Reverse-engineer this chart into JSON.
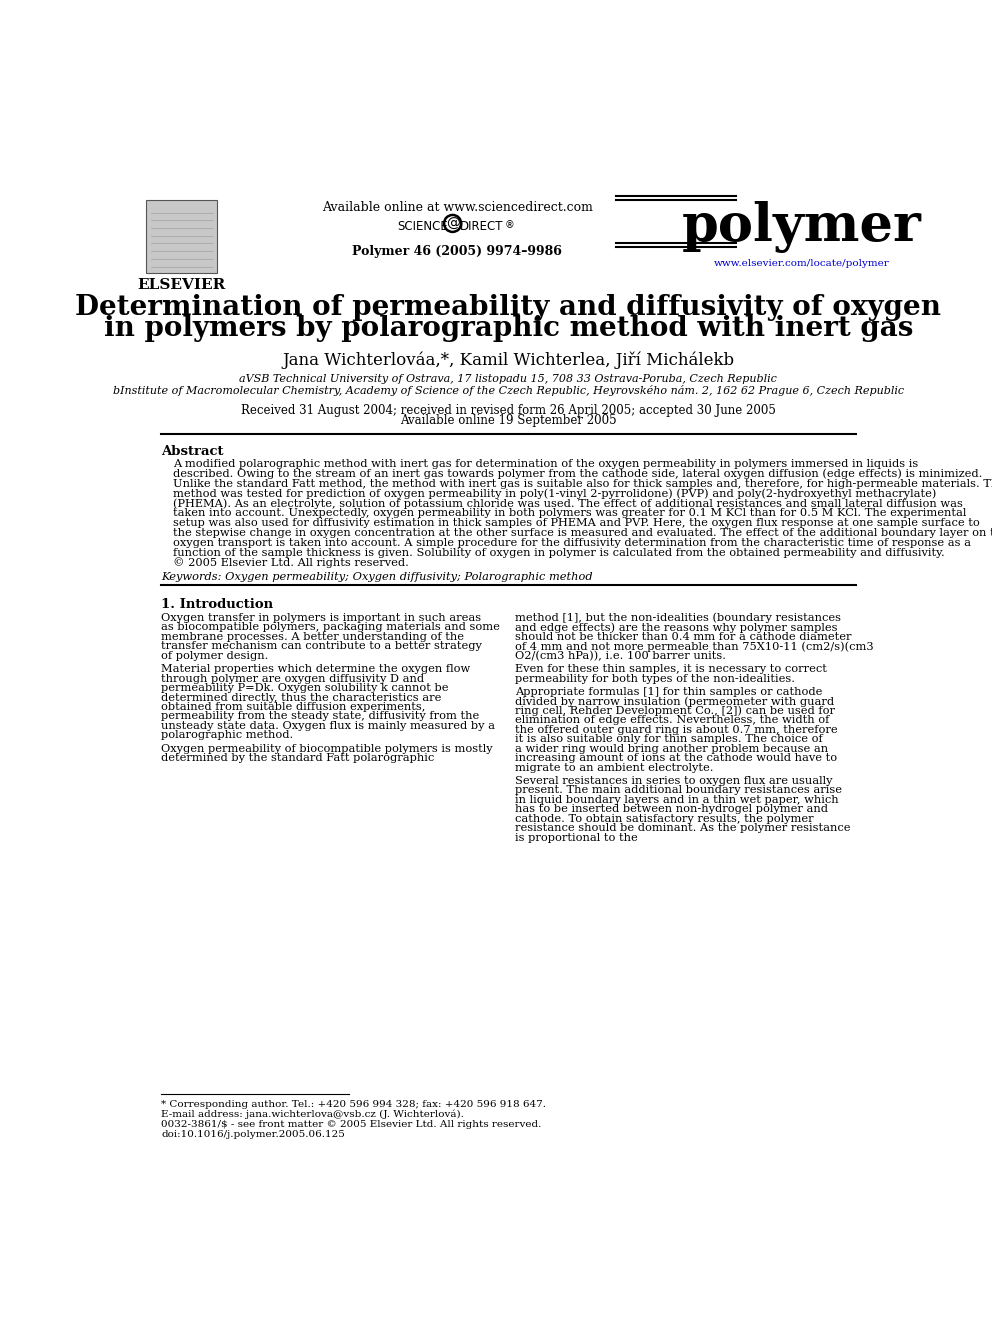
{
  "title_line1": "Determination of permeability and diffusivity of oxygen",
  "title_line2": "in polymers by polarographic method with inert gas",
  "authors": "Jana Wichterlováa,*, Kamil Wichterlea, Jiří Michálekb",
  "affil_a": "aVSB Technical University of Ostrava, 17 listopadu 15, 708 33 Ostrava-Poruba, Czech Republic",
  "affil_b": "bInstitute of Macromolecular Chemistry, Academy of Science of the Czech Republic, Heyrovského nám. 2, 162 62 Prague 6, Czech Republic",
  "received": "Received 31 August 2004; received in revised form 26 April 2005; accepted 30 June 2005",
  "available": "Available online 19 September 2005",
  "journal_info": "Polymer 46 (2005) 9974–9986",
  "available_online": "Available online at www.sciencedirect.com",
  "journal_name": "polymer",
  "journal_url": "www.elsevier.com/locate/polymer",
  "elsevier": "ELSEVIER",
  "abstract_title": "Abstract",
  "keywords": "Keywords: Oxygen permeability; Oxygen diffusivity; Polarographic method",
  "section1_title": "1. Introduction",
  "footnote_corr": "* Corresponding author. Tel.: +420 596 994 328; fax: +420 596 918 647.",
  "footnote_email": "E-mail address: jana.wichterlova@vsb.cz (J. Wichterlová).",
  "footnote_issn": "0032-3861/$ - see front matter © 2005 Elsevier Ltd. All rights reserved.",
  "footnote_doi": "doi:10.1016/j.polymer.2005.06.125",
  "bg_color": "#ffffff",
  "text_color": "#000000",
  "link_color": "#0000cc",
  "abstract_lines": [
    "A modified polarographic method with inert gas for determination of the oxygen permeability in polymers immersed in liquids is",
    "described. Owing to the stream of an inert gas towards polymer from the cathode side, lateral oxygen diffusion (edge effects) is minimized.",
    "Unlike the standard Fatt method, the method with inert gas is suitable also for thick samples and, therefore, for high-permeable materials. The",
    "method was tested for prediction of oxygen permeability in poly(1-vinyl 2-pyrrolidone) (PVP) and poly(2-hydroxyethyl methacrylate)",
    "(PHEMA). As an electrolyte, solution of potassium chloride was used. The effect of additional resistances and small lateral diffusion was",
    "taken into account. Unexpectedly, oxygen permeability in both polymers was greater for 0.1 M KCl than for 0.5 M KCl. The experimental",
    "setup was also used for diffusivity estimation in thick samples of PHEMA and PVP. Here, the oxygen flux response at one sample surface to",
    "the stepwise change in oxygen concentration at the other surface is measured and evaluated. The effect of the additional boundary layer on the",
    "oxygen transport is taken into account. A simple procedure for the diffusivity determination from the characteristic time of response as a",
    "function of the sample thickness is given. Solubility of oxygen in polymer is calculated from the obtained permeability and diffusivity.",
    "© 2005 Elsevier Ltd. All rights reserved."
  ],
  "col1_paragraphs": [
    "   Oxygen transfer in polymers is important in such areas as biocompatible polymers, packaging materials and some membrane processes. A better understanding of the transfer mechanism can contribute to a better strategy of polymer design.",
    "   Material properties which determine the oxygen flow through polymer are oxygen diffusivity D and permeability P=Dk. Oxygen solubility k cannot be determined directly, thus the characteristics are obtained from suitable diffusion experiments, permeability from the steady state, diffusivity from the unsteady state data. Oxygen flux is mainly measured by a polarographic method.",
    "   Oxygen permeability of biocompatible polymers is mostly determined by the standard Fatt polarographic"
  ],
  "col2_paragraphs": [
    "method [1], but the non-idealities (boundary resistances and edge effects) are the reasons why polymer samples should not be thicker than 0.4 mm for a cathode diameter of 4 mm and not more permeable than 75X10-11 (cm2/s)(cm3 O2/(cm3 hPa)), i.e. 100 barrer units.",
    "   Even for these thin samples, it is necessary to correct permeability for both types of the non-idealities.",
    "   Appropriate formulas [1] for thin samples or cathode divided by narrow insulation (permeometer with guard ring cell, Rehder Development Co., [2]) can be used for elimination of edge effects. Nevertheless, the width of the offered outer guard ring is about 0.7 mm, therefore it is also suitable only for thin samples. The choice of a wider ring would bring another problem because an increasing amount of ions at the cathode would have to migrate to an ambient electrolyte.",
    "   Several resistances in series to oxygen flux are usually present. The main additional boundary resistances arise in liquid boundary layers and in a thin wet paper, which has to be inserted between non-hydrogel polymer and cathode. To obtain satisfactory results, the polymer resistance should be dominant. As the polymer resistance is proportional to the"
  ]
}
